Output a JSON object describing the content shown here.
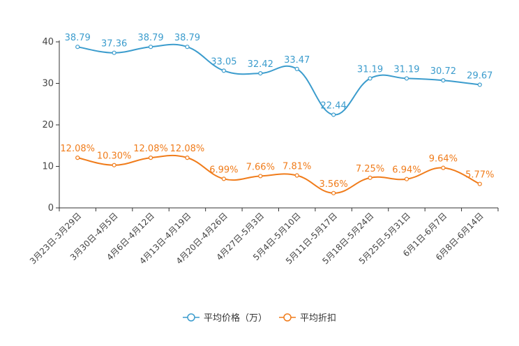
{
  "chart_data": {
    "type": "line",
    "categories": [
      "3月23日-3月29日",
      "3月30日-4月5日",
      "4月6日-4月12日",
      "4月13日-4月19日",
      "4月20日-4月26日",
      "4月27日-5月3日",
      "5月4日-5月10日",
      "5月11日-5月17日",
      "5月18日-5月24日",
      "5月25日-5月31日",
      "6月1日-6月7日",
      "6月8日-6月14日"
    ],
    "series": [
      {
        "name": "平均价格（万）",
        "color": "#3b9ccd",
        "values": [
          38.79,
          37.36,
          38.79,
          38.79,
          33.05,
          32.42,
          33.47,
          22.44,
          31.19,
          31.19,
          30.72,
          29.67
        ],
        "labels": [
          "38.79",
          "37.36",
          "38.79",
          "38.79",
          "33.05",
          "32.42",
          "33.47",
          "22.44",
          "31.19",
          "31.19",
          "30.72",
          "29.67"
        ]
      },
      {
        "name": "平均折扣",
        "color": "#f07c1b",
        "values": [
          12.08,
          10.3,
          12.08,
          12.08,
          6.99,
          7.66,
          7.81,
          3.56,
          7.25,
          6.94,
          9.64,
          5.77
        ],
        "labels": [
          "12.08%",
          "10.30%",
          "12.08%",
          "12.08%",
          "6.99%",
          "7.66%",
          "7.81%",
          "3.56%",
          "7.25%",
          "6.94%",
          "9.64%",
          "5.77%"
        ]
      }
    ],
    "ylim": [
      0,
      40
    ],
    "yticks": [
      "0",
      "10",
      "20",
      "30",
      "40"
    ],
    "smooth": true,
    "legend": "bottom-center"
  }
}
